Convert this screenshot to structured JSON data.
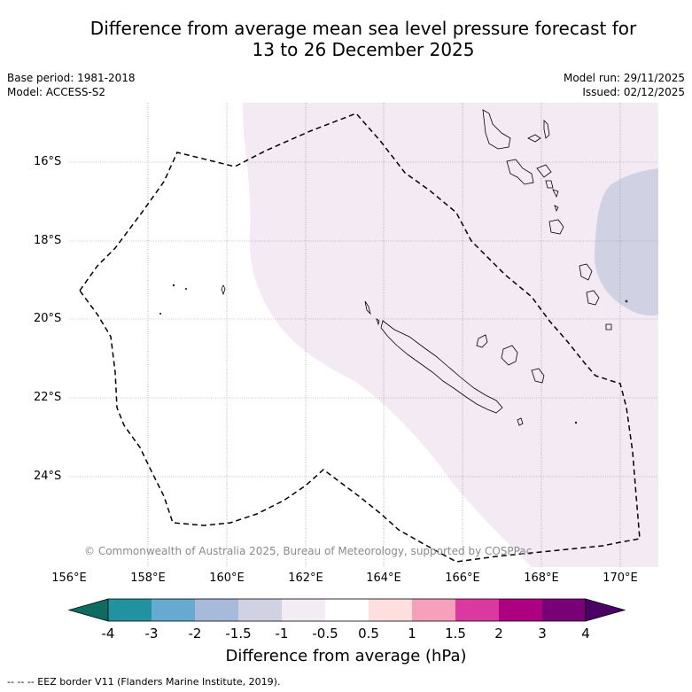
{
  "header": {
    "title_line1": "Difference from average mean sea level pressure forecast for",
    "title_line2": "13 to 26 December 2025"
  },
  "meta": {
    "base_period": "Base period: 1981-2018",
    "model": "Model: ACCESS-S2",
    "model_run": "Model run: 29/11/2025",
    "issued": "Issued: 02/12/2025"
  },
  "map": {
    "lat_labels": [
      "16°S",
      "18°S",
      "20°S",
      "22°S",
      "24°S"
    ],
    "lon_labels": [
      "156°E",
      "158°E",
      "160°E",
      "162°E",
      "164°E",
      "166°E",
      "168°E",
      "170°E"
    ],
    "copyright": "© Commonwealth of Australia 2025, Bureau of Meteorology, supported by COSPPac",
    "anomaly_colors": {
      "light_purple": "#f3eaf3",
      "lavender": "#d0d2e4"
    }
  },
  "colorbar": {
    "tick_labels": [
      "-4",
      "-3",
      "-2",
      "-1.5",
      "-1",
      "-0.5",
      "0.5",
      "1",
      "1.5",
      "2",
      "3",
      "4"
    ],
    "colors": [
      "#0d6b62",
      "#2192a0",
      "#66a9d1",
      "#a7bada",
      "#d0d2e4",
      "#f3ecf4",
      "#ffffff",
      "#fde0de",
      "#f7a0bc",
      "#dc39a0",
      "#ac0080",
      "#7a0078",
      "#4b0065"
    ],
    "title": "Difference from average (hPa)"
  },
  "legend": {
    "eez": "--  --  -- EEZ border V11 (Flanders Marine Institute, 2019)."
  }
}
